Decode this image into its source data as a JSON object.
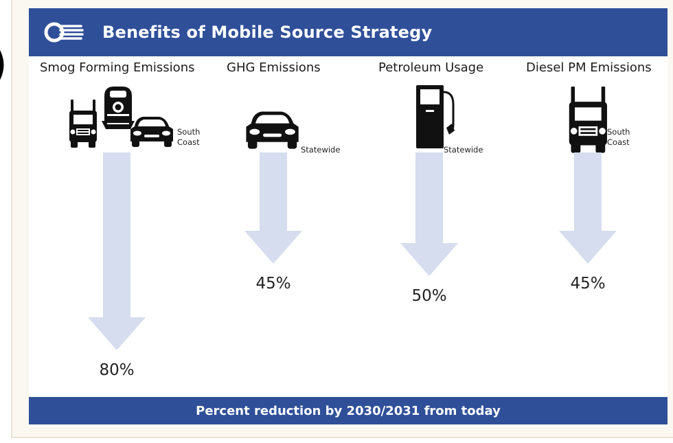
{
  "header": {
    "title": "Benefits of Mobile Source Strategy",
    "logo_icon": "cycle-logo-icon"
  },
  "footer": {
    "caption": "Percent reduction by 2030/2031 from today"
  },
  "colors": {
    "banner": "#2f4f99",
    "arrow": "#d5ddee",
    "icon": "#111111"
  },
  "chart_data": {
    "type": "bar",
    "orientation": "downward-arrows",
    "categories": [
      "Smog Forming Emissions",
      "GHG Emissions",
      "Petroleum Usage",
      "Diesel PM Emissions"
    ],
    "values": [
      80,
      45,
      50,
      45
    ],
    "value_labels": [
      "80%",
      "45%",
      "50%",
      "45%"
    ],
    "scope_labels": [
      [
        "South",
        "Coast"
      ],
      [
        "Statewide"
      ],
      [
        "Statewide"
      ],
      [
        "South",
        "Coast"
      ]
    ],
    "icons": [
      [
        "truck-icon",
        "train-icon",
        "car-icon"
      ],
      [
        "car-icon"
      ],
      [
        "fuel-pump-icon"
      ],
      [
        "truck-icon"
      ]
    ],
    "title": "Benefits of Mobile Source Strategy",
    "xlabel": "Percent reduction by 2030/2031 from today",
    "ylabel": "",
    "grid": false
  }
}
